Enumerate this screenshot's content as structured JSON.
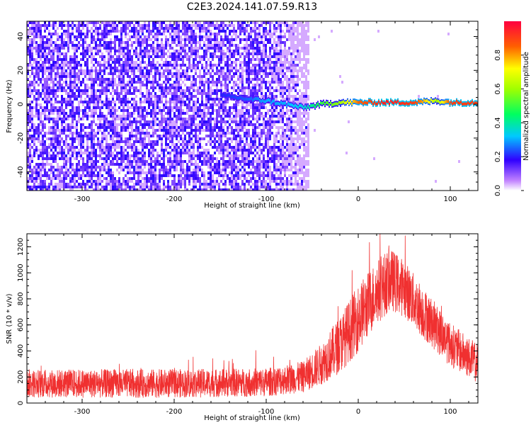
{
  "title": "C2E3.2024.141.07.59.R13",
  "colors": {
    "spectrogram_noise": "#7a00ff",
    "snr_line": "#f03030",
    "frame": "#000000",
    "background": "#ffffff"
  },
  "chart_data": [
    {
      "type": "heatmap",
      "xlabel": "Height of straight line (km)",
      "ylabel": "Frequency (Hz)",
      "xlim": [
        -360,
        130
      ],
      "ylim": [
        -51,
        49
      ],
      "xticks": [
        -300,
        -200,
        -100,
        0,
        100
      ],
      "yticks": [
        -40,
        -20,
        0,
        20,
        40
      ],
      "grid": false,
      "noise_region_x": [
        -360,
        -55
      ],
      "signal_trace": [
        {
          "x": -150,
          "y": 5,
          "amp": 0.2
        },
        {
          "x": -120,
          "y": 3,
          "amp": 0.25
        },
        {
          "x": -100,
          "y": 2,
          "amp": 0.3
        },
        {
          "x": -80,
          "y": 0,
          "amp": 0.3
        },
        {
          "x": -60,
          "y": -2,
          "amp": 0.35
        },
        {
          "x": -40,
          "y": 0,
          "amp": 0.5
        },
        {
          "x": -20,
          "y": 1,
          "amp": 0.6
        },
        {
          "x": 0,
          "y": 1,
          "amp": 0.85
        },
        {
          "x": 30,
          "y": 1,
          "amp": 0.95
        },
        {
          "x": 60,
          "y": 1,
          "amp": 0.9
        },
        {
          "x": 85,
          "y": 2,
          "amp": 0.6
        },
        {
          "x": 100,
          "y": 1,
          "amp": 0.9
        },
        {
          "x": 130,
          "y": 1,
          "amp": 0.9
        }
      ],
      "colorbar": {
        "label": "Normalized spectral amplitude",
        "range": [
          0,
          1
        ],
        "ticks": [
          "0.0",
          "0.2",
          "0.4",
          "0.6",
          "0.8"
        ]
      }
    },
    {
      "type": "line",
      "xlabel": "Height of straight line (km)",
      "ylabel": "SNR (10 * v/v)",
      "xlim": [
        -360,
        130
      ],
      "ylim": [
        0,
        1300
      ],
      "xticks": [
        -300,
        -200,
        -100,
        0,
        100
      ],
      "yticks": [
        0,
        200,
        400,
        600,
        800,
        1000,
        1200
      ],
      "grid": false,
      "series": [
        {
          "envelope_x": [
            -360,
            -300,
            -200,
            -100,
            -60,
            -40,
            -20,
            0,
            20,
            35,
            50,
            70,
            100,
            130
          ],
          "envelope_mean": [
            150,
            150,
            150,
            160,
            200,
            300,
            450,
            650,
            850,
            950,
            880,
            700,
            450,
            300
          ],
          "envelope_spread": [
            110,
            110,
            110,
            110,
            120,
            160,
            220,
            260,
            250,
            240,
            220,
            200,
            170,
            150
          ]
        }
      ]
    }
  ]
}
